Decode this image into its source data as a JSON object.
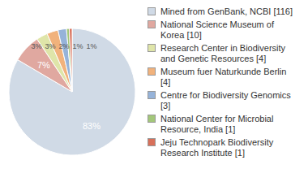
{
  "chart_data": {
    "type": "pie",
    "categories": [
      "Mined from GenBank, NCBI [116]",
      "National Science Museum of Korea [10]",
      "Research Center in Biodiversity and Genetic Resources [4]",
      "Museum fuer Naturkunde Berlin [4]",
      "Centre for Biodiversity Genomics [3]",
      "National Center for Microbial Resource, India [1]",
      "Jeju Technopark Biodiversity Research Institute [1]"
    ],
    "values": [
      83.45,
      7.19,
      2.88,
      2.88,
      2.16,
      0.72,
      0.72
    ],
    "value_labels": [
      "83%",
      "7%",
      "3%",
      "3%",
      "2%",
      "1%",
      "1%"
    ],
    "colors": [
      "#d0dae6",
      "#e0a8a0",
      "#dfe5a9",
      "#f1b27c",
      "#96b3d9",
      "#a3c77a",
      "#d8705a"
    ],
    "data_labels": true,
    "legend": "right"
  }
}
